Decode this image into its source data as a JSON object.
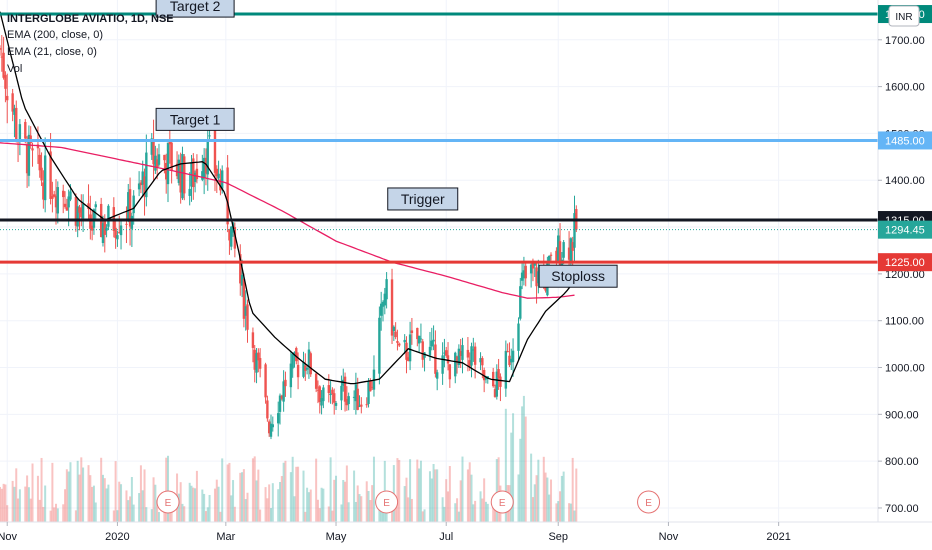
{
  "chart_data": {
    "type": "candlestick",
    "symbol_label": "INTERGLOBE AVIATIO, 1D, NSE",
    "currency_button": "INR",
    "indicators": [
      {
        "label": "EMA (200, close, 0)",
        "color": "#e91e63"
      },
      {
        "label": "EMA (21, close, 0)",
        "color": "#000000"
      },
      {
        "label": "Vol",
        "color": "#26a69a"
      }
    ],
    "ylim": [
      670,
      1785
    ],
    "y_ticks": [
      700,
      800,
      900,
      1000,
      1100,
      1200,
      1300,
      1400,
      1500,
      1600,
      1700
    ],
    "y_tick_labels": [
      "700.00",
      "800.00",
      "900.00",
      "1000.00",
      "1100.00",
      "1200.00",
      "1300.00",
      "1400.00",
      "1500.00",
      "1600.00",
      "1700.00"
    ],
    "x_range": [
      "2019-10-28",
      "2021-02-25"
    ],
    "x_ticks": [
      {
        "date": "2019-11-01",
        "label": "Nov"
      },
      {
        "date": "2020-01-01",
        "label": "2020"
      },
      {
        "date": "2020-03-01",
        "label": "Mar"
      },
      {
        "date": "2020-05-01",
        "label": "May"
      },
      {
        "date": "2020-07-01",
        "label": "Jul"
      },
      {
        "date": "2020-09-01",
        "label": "Sep"
      },
      {
        "date": "2020-11-01",
        "label": "Nov"
      },
      {
        "date": "2021-01-01",
        "label": "2021"
      }
    ],
    "horizontal_levels": [
      {
        "name": "Target 2",
        "value": 1755,
        "label": "1755.00",
        "color": "#00897b"
      },
      {
        "name": "Target 1",
        "value": 1485,
        "label": "1485.00",
        "color": "#64b5f6"
      },
      {
        "name": "Trigger",
        "value": 1315,
        "label": "1315.00",
        "color": "#131722"
      },
      {
        "name": "Stoploss",
        "value": 1225,
        "label": "1225.00",
        "color": "#e53935"
      }
    ],
    "last_price": {
      "value": 1294.45,
      "label": "1294.45",
      "color": "#26a69a"
    },
    "annotations": [
      {
        "text": "Target 2",
        "date": "2020-02-13",
        "value": 1772
      },
      {
        "text": "Target 1",
        "date": "2020-02-13",
        "value": 1530
      },
      {
        "text": "Trigger",
        "date": "2020-06-18",
        "value": 1360
      },
      {
        "text": "Stoploss",
        "date": "2020-09-12",
        "value": 1195
      }
    ],
    "earnings_markers": [
      {
        "date": "2020-01-29",
        "text": "E"
      },
      {
        "date": "2020-05-29",
        "text": "E"
      },
      {
        "date": "2020-08-01",
        "text": "E"
      },
      {
        "date": "2020-10-21",
        "text": "E"
      }
    ],
    "price_path_dates": [
      "2019-10-28",
      "2019-11-08",
      "2019-11-20",
      "2019-12-05",
      "2019-12-15",
      "2019-12-28",
      "2020-01-10",
      "2020-01-20",
      "2020-02-01",
      "2020-02-10",
      "2020-02-18",
      "2020-02-25",
      "2020-03-02",
      "2020-03-09",
      "2020-03-16",
      "2020-03-25",
      "2020-04-05",
      "2020-04-15",
      "2020-04-25",
      "2020-05-05",
      "2020-05-15",
      "2020-05-22",
      "2020-05-28",
      "2020-06-05",
      "2020-06-15",
      "2020-06-25",
      "2020-07-05",
      "2020-07-15",
      "2020-07-25",
      "2020-08-01",
      "2020-08-06",
      "2020-08-12",
      "2020-08-18",
      "2020-08-25",
      "2020-09-01",
      "2020-09-08",
      "2020-09-11"
    ],
    "price_path_close": [
      1680,
      1480,
      1410,
      1370,
      1300,
      1310,
      1340,
      1450,
      1440,
      1390,
      1470,
      1420,
      1330,
      1180,
      1050,
      880,
      990,
      1020,
      920,
      950,
      930,
      980,
      1170,
      1020,
      1060,
      1020,
      1000,
      1030,
      950,
      980,
      1040,
      1180,
      1200,
      1190,
      1250,
      1270,
      1294
    ],
    "ema21_dates": [
      "2019-10-28",
      "2019-11-10",
      "2019-11-25",
      "2019-12-10",
      "2019-12-25",
      "2020-01-10",
      "2020-01-25",
      "2020-02-05",
      "2020-02-18",
      "2020-03-01",
      "2020-03-08",
      "2020-03-15",
      "2020-03-28",
      "2020-04-10",
      "2020-04-25",
      "2020-05-10",
      "2020-05-25",
      "2020-06-10",
      "2020-06-25",
      "2020-07-10",
      "2020-07-25",
      "2020-08-05",
      "2020-08-15",
      "2020-08-25",
      "2020-09-05",
      "2020-09-11"
    ],
    "ema21_values": [
      1760,
      1560,
      1450,
      1360,
      1315,
      1340,
      1420,
      1435,
      1440,
      1370,
      1250,
      1120,
      1065,
      1020,
      975,
      965,
      975,
      1040,
      1020,
      1010,
      975,
      970,
      1060,
      1120,
      1160,
      1190
    ],
    "ema200_dates": [
      "2019-10-28",
      "2019-12-01",
      "2020-01-01",
      "2020-02-01",
      "2020-03-01",
      "2020-04-01",
      "2020-05-01",
      "2020-06-01",
      "2020-07-01",
      "2020-08-01",
      "2020-08-15",
      "2020-09-01",
      "2020-09-11"
    ],
    "ema200_values": [
      1480,
      1470,
      1445,
      1420,
      1395,
      1335,
      1270,
      1225,
      1195,
      1160,
      1148,
      1150,
      1155
    ],
    "volume_color_up": "#26a69a",
    "volume_color_down": "#ef5350"
  }
}
